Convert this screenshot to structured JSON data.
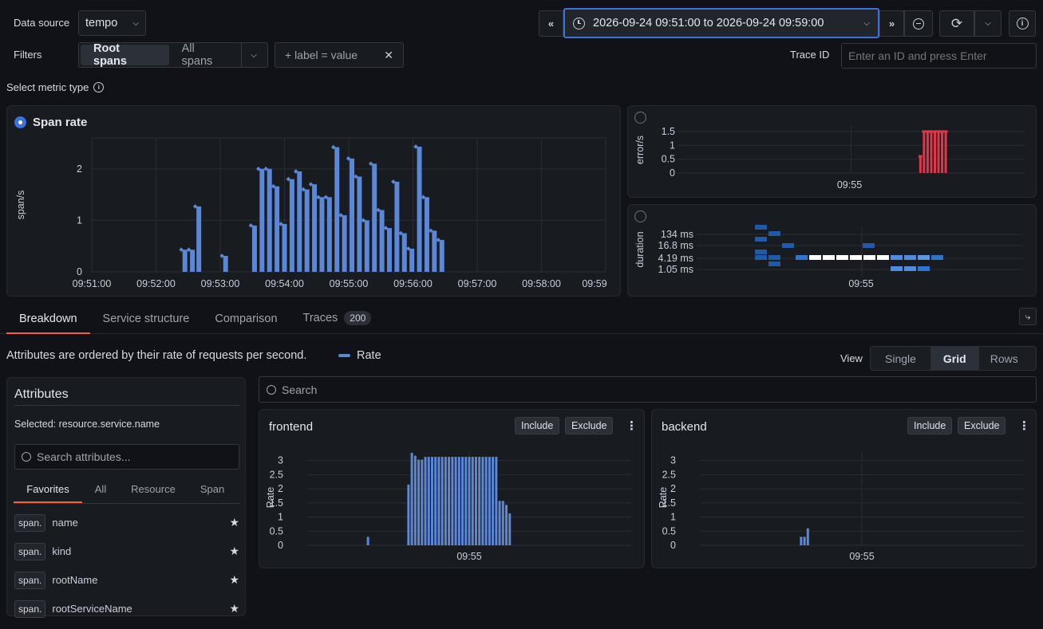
{
  "header": {
    "data_source_label": "Data source",
    "data_source_value": "tempo",
    "filters_label": "Filters",
    "filter_tabs": [
      "Root spans",
      "All spans"
    ],
    "label_filter": "+ label = value",
    "time_range": "2026-09-24 09:51:00 to 2026-09-24 09:59:00",
    "trace_id_label": "Trace ID",
    "trace_id_placeholder": "Enter an ID and press Enter"
  },
  "metric": {
    "select_label": "Select metric type",
    "span_rate": {
      "title": "Span rate",
      "selected": true,
      "chart_data": {
        "type": "bar",
        "ylabel": "span/s",
        "ylim": [
          0,
          2.6
        ],
        "yticks": [
          "0",
          "1",
          "2"
        ],
        "xticks": [
          "09:51:00",
          "09:52:00",
          "09:53:00",
          "09:54:00",
          "09:55:00",
          "09:56:00",
          "09:57:00",
          "09:58:00",
          "09:59"
        ],
        "x": [
          "09:52:27",
          "09:52:34",
          "09:52:40",
          "09:53:05",
          "09:53:32",
          "09:53:39",
          "09:53:46",
          "09:53:53",
          "09:54:00",
          "09:54:07",
          "09:54:14",
          "09:54:21",
          "09:54:28",
          "09:54:35",
          "09:54:42",
          "09:54:49",
          "09:54:56",
          "09:55:03",
          "09:55:10",
          "09:55:17",
          "09:55:24",
          "09:55:31",
          "09:55:38",
          "09:55:45",
          "09:55:52",
          "09:55:59",
          "09:56:06",
          "09:56:13",
          "09:56:20",
          "09:56:27"
        ],
        "values": [
          0.43,
          0.43,
          1.27,
          0.31,
          0.9,
          2.0,
          2.0,
          1.66,
          0.93,
          1.8,
          1.95,
          1.6,
          1.7,
          1.45,
          1.45,
          2.42,
          1.1,
          2.2,
          1.85,
          1.0,
          2.1,
          1.2,
          0.85,
          1.75,
          0.75,
          0.45,
          2.43,
          1.45,
          0.8,
          0.62
        ]
      }
    },
    "errors": {
      "selected": false,
      "chart_data": {
        "type": "bar",
        "ylabel": "error/s",
        "ylim": [
          0,
          1.7
        ],
        "yticks": [
          "1.5",
          "1",
          "0.5",
          "0"
        ],
        "xticks": [
          "09:55"
        ],
        "x": [
          "09:56:16",
          "09:56:21",
          "09:56:26",
          "09:56:31",
          "09:56:36",
          "09:56:41",
          "09:56:46",
          "09:56:51"
        ],
        "values": [
          0.6,
          1.5,
          1.5,
          1.5,
          1.5,
          1.5,
          1.5,
          1.5
        ]
      }
    },
    "duration": {
      "selected": false,
      "chart_data": {
        "type": "heatmap",
        "ylabel": "duration",
        "yticks": [
          "134 ms",
          "16.8 ms",
          "4.19 ms",
          "1.05 ms"
        ],
        "xticks": [
          "09:55"
        ]
      }
    }
  },
  "tabs": [
    {
      "label": "Breakdown",
      "active": true
    },
    {
      "label": "Service structure"
    },
    {
      "label": "Comparison"
    },
    {
      "label": "Traces",
      "badge": "200"
    }
  ],
  "breakdown": {
    "description": "Attributes are ordered by their rate of requests per second.",
    "legend": "Rate",
    "view_label": "View",
    "view_options": [
      "Single",
      "Grid",
      "Rows"
    ],
    "search_placeholder": "Search",
    "attributes": {
      "title": "Attributes",
      "selected_text": "Selected: resource.service.name",
      "search_placeholder": "Search attributes...",
      "tabs": [
        "Favorites",
        "All",
        "Resource",
        "Span"
      ],
      "items": [
        {
          "prefix": "span.",
          "name": "name"
        },
        {
          "prefix": "span.",
          "name": "kind"
        },
        {
          "prefix": "span.",
          "name": "rootName"
        },
        {
          "prefix": "span.",
          "name": "rootServiceName"
        }
      ]
    },
    "panels": [
      {
        "title": "frontend",
        "include": "Include",
        "exclude": "Exclude",
        "chart_data": {
          "type": "bar",
          "ylabel": "Rate",
          "ylim": [
            0,
            3.3
          ],
          "yticks": [
            "3",
            "2.5",
            "2",
            "1.5",
            "1",
            "0.5",
            "0"
          ],
          "xticks": [
            "09:55"
          ],
          "x": [
            "09:52:30",
            "09:53:30",
            "09:53:35",
            "09:53:40",
            "09:53:45",
            "09:53:50",
            "09:53:55",
            "09:54:00",
            "09:54:05",
            "09:54:10",
            "09:54:15",
            "09:54:20",
            "09:54:25",
            "09:54:30",
            "09:54:35",
            "09:54:40",
            "09:54:45",
            "09:54:50",
            "09:54:55",
            "09:55:00",
            "09:55:05",
            "09:55:10",
            "09:55:15",
            "09:55:20",
            "09:55:25",
            "09:55:30",
            "09:55:35",
            "09:55:40",
            "09:55:45",
            "09:55:50",
            "09:55:55",
            "09:56:00",
            "09:56:05"
          ],
          "values": [
            0.3,
            2.15,
            3.27,
            3.17,
            3.03,
            3.03,
            3.13,
            3.13,
            3.13,
            3.13,
            3.13,
            3.13,
            3.13,
            3.13,
            3.13,
            3.13,
            3.13,
            3.13,
            3.13,
            3.13,
            3.13,
            3.13,
            3.13,
            3.13,
            3.13,
            3.13,
            3.13,
            3.13,
            1.57,
            1.57,
            1.43,
            1.13,
            0
          ]
        }
      },
      {
        "title": "backend",
        "include": "Include",
        "exclude": "Exclude",
        "chart_data": {
          "type": "bar",
          "ylabel": "Rate",
          "ylim": [
            0,
            3.3
          ],
          "yticks": [
            "3",
            "2.5",
            "2",
            "1.5",
            "1",
            "0.5",
            "0"
          ],
          "xticks": [
            "09:55"
          ],
          "x": [
            "09:53:30",
            "09:53:35",
            "09:53:40"
          ],
          "values": [
            0.3,
            0.3,
            0.6
          ]
        }
      }
    ]
  },
  "colors": {
    "bar": "#5b87d6",
    "error": "#e0364a",
    "accent": "#3d71d9",
    "tab_active": "#f55f3e"
  }
}
